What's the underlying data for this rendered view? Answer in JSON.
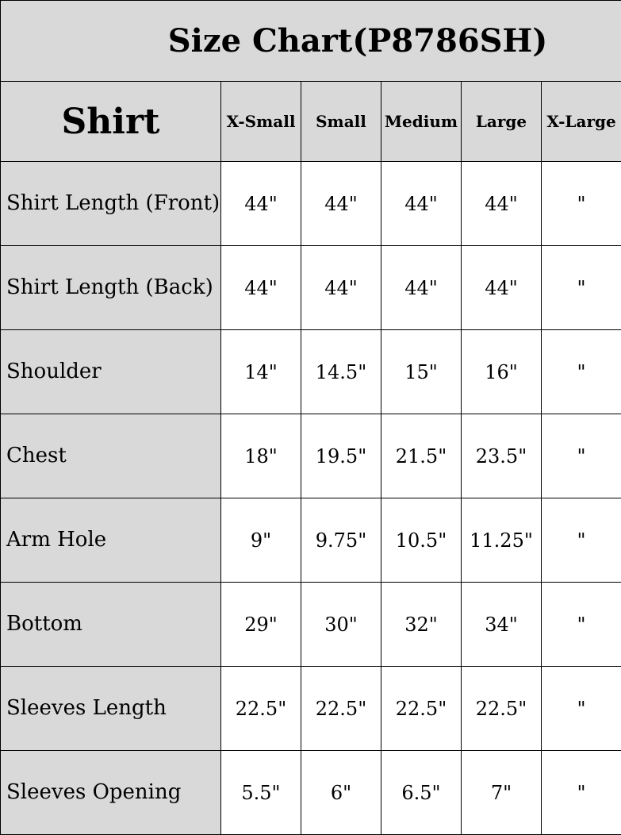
{
  "title": "Size Chart(P8786SH)",
  "header": {
    "section": "Shirt",
    "sizes": [
      "X-Small",
      "Small",
      "Medium",
      "Large",
      "X-Large"
    ]
  },
  "rows": [
    {
      "label": "Shirt Length (Front)",
      "values": [
        "44\"",
        "44\"",
        "44\"",
        "44\"",
        "\""
      ]
    },
    {
      "label": "Shirt Length (Back)",
      "values": [
        "44\"",
        "44\"",
        "44\"",
        "44\"",
        "\""
      ]
    },
    {
      "label": "Shoulder",
      "values": [
        "14\"",
        "14.5\"",
        "15\"",
        "16\"",
        "\""
      ]
    },
    {
      "label": "Chest",
      "values": [
        "18\"",
        "19.5\"",
        "21.5\"",
        "23.5\"",
        "\""
      ]
    },
    {
      "label": "Arm Hole",
      "values": [
        "9\"",
        "9.75\"",
        "10.5\"",
        "11.25\"",
        "\""
      ]
    },
    {
      "label": "Bottom",
      "values": [
        "29\"",
        "30\"",
        "32\"",
        "34\"",
        "\""
      ]
    },
    {
      "label": "Sleeves Length",
      "values": [
        "22.5\"",
        "22.5\"",
        "22.5\"",
        "22.5\"",
        "\""
      ]
    },
    {
      "label": "Sleeves Opening",
      "values": [
        "5.5\"",
        "6\"",
        "6.5\"",
        "7\"",
        "\""
      ]
    }
  ],
  "colors": {
    "header_bg": "#d9d9d9",
    "border": "#000000"
  }
}
